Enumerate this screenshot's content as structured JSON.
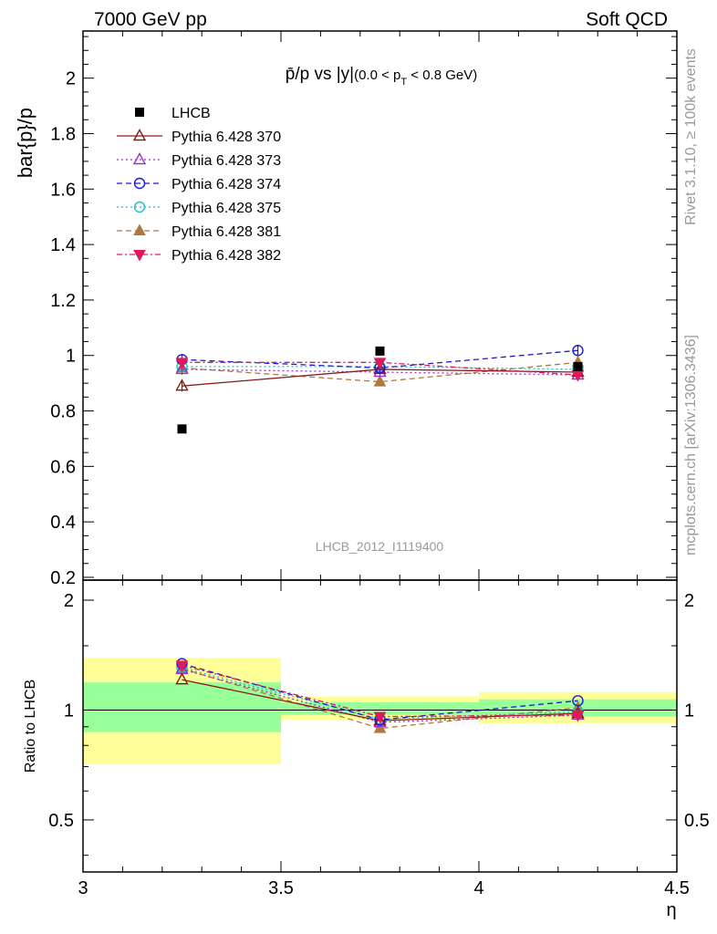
{
  "header": {
    "left": "7000 GeV pp",
    "right": "Soft QCD"
  },
  "side_text": {
    "top": "Rivet 3.1.10, ≥ 100k events",
    "bottom": "mcplots.cern.ch [arXiv:1306.3436]"
  },
  "analysis_id": "LHCB_2012_I1119400",
  "chart_data": {
    "type": "scatter",
    "title": "p̄/p vs |y|(0.0 < pT < 0.8 GeV)",
    "title_main": "p̄/p vs |y|",
    "title_cut_pre": "(0.0 < p",
    "title_cut_sub": "T",
    "title_cut_post": " < 0.8 GeV)",
    "xlabel": "η",
    "ylabel": "bar{p}/p",
    "ratio_ylabel": "Ratio to LHCB",
    "xlim": [
      3.0,
      4.5
    ],
    "ylim": [
      0.19,
      2.17
    ],
    "ratio_ylim": [
      0.36,
      2.27
    ],
    "x_ticks": [
      "3",
      "3.5",
      "4",
      "4.5"
    ],
    "y_ticks": [
      "0.2",
      "0.4",
      "0.6",
      "0.8",
      "1",
      "1.2",
      "1.4",
      "1.6",
      "1.8",
      "2"
    ],
    "ratio_y_ticks": [
      "0.5",
      "1",
      "2"
    ],
    "x": [
      3.25,
      3.75,
      4.25
    ],
    "bin_edges": [
      3.0,
      3.5,
      4.0,
      4.5
    ],
    "data": {
      "name": "LHCB",
      "values": [
        0.735,
        1.016,
        0.96
      ]
    },
    "bands": {
      "inner": [
        [
          0.87,
          1.19
        ],
        [
          0.97,
          1.05
        ],
        [
          0.96,
          1.07
        ]
      ],
      "outer": [
        [
          0.71,
          1.39
        ],
        [
          0.94,
          1.09
        ],
        [
          0.92,
          1.12
        ]
      ]
    },
    "series": [
      {
        "name": "Pythia 6.428 370",
        "color": "#8b1a1a",
        "dash": "solid",
        "marker": "triangle-open",
        "values": [
          0.89,
          0.95,
          0.94
        ],
        "err": [
          0.02,
          0.012,
          0.018
        ]
      },
      {
        "name": "Pythia 6.428 373",
        "color": "#9932cc",
        "dash": "dotted",
        "marker": "triangle-open",
        "values": [
          0.95,
          0.94,
          0.93
        ],
        "err": [
          0.02,
          0.012,
          0.018
        ]
      },
      {
        "name": "Pythia 6.428 374",
        "color": "#1a1ad4",
        "dash": "dashed",
        "marker": "circle-open",
        "values": [
          0.985,
          0.955,
          1.018
        ],
        "err": [
          0.02,
          0.012,
          0.018
        ]
      },
      {
        "name": "Pythia 6.428 375",
        "color": "#20c0c0",
        "dash": "dotted",
        "marker": "circle-open",
        "values": [
          0.96,
          0.96,
          0.95
        ],
        "err": [
          0.02,
          0.012,
          0.018
        ]
      },
      {
        "name": "Pythia 6.428 381",
        "color": "#b07840",
        "dash": "dashed",
        "marker": "triangle-filled",
        "values": [
          0.955,
          0.905,
          0.975
        ],
        "err": [
          0.02,
          0.012,
          0.018
        ]
      },
      {
        "name": "Pythia 6.428 382",
        "color": "#e0185c",
        "dash": "dashdot",
        "marker": "triangle-down-filled",
        "values": [
          0.975,
          0.975,
          0.93
        ],
        "err": [
          0.02,
          0.012,
          0.018
        ]
      }
    ],
    "ratio_reference": 1
  }
}
